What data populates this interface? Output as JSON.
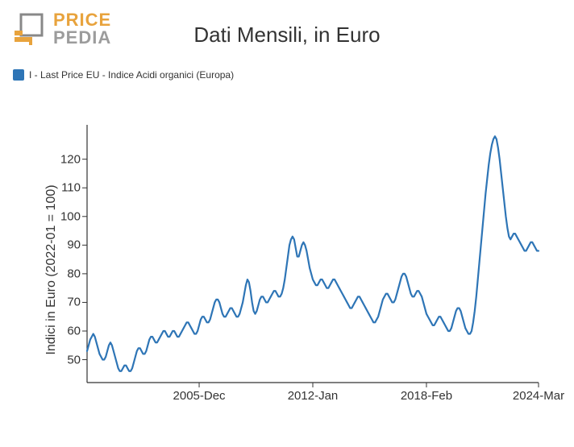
{
  "logo": {
    "line1": "PRICE",
    "line2": "PEDIA",
    "color1": "#e8a33d",
    "color2": "#9c9c9c",
    "icon_fill": "#e8a33d",
    "icon_stroke": "#888888"
  },
  "title": "Dati Mensili, in Euro",
  "legend": {
    "label": "I - Last Price EU - Indice Acidi organici (Europa)",
    "swatch_color": "#2e75b6"
  },
  "chart": {
    "type": "line",
    "ylabel": "Indici in Euro (2022-01 = 100)",
    "ylim": [
      42,
      132
    ],
    "yticks": [
      50,
      60,
      70,
      80,
      90,
      100,
      110,
      120
    ],
    "xlim": [
      0,
      290
    ],
    "xticks": [
      {
        "pos": 72,
        "label": "2005-Dec"
      },
      {
        "pos": 145,
        "label": "2012-Jan"
      },
      {
        "pos": 218,
        "label": "2018-Feb"
      },
      {
        "pos": 290,
        "label": "2024-Mar"
      }
    ],
    "axis_color": "#333333",
    "tick_font_size": 15,
    "line_color": "#2e75b6",
    "line_width": 2.2,
    "series": [
      53,
      55,
      57,
      58,
      59,
      58,
      56,
      54,
      52,
      51,
      50,
      50,
      51,
      53,
      55,
      56,
      55,
      53,
      51,
      49,
      47,
      46,
      46,
      47,
      48,
      48,
      47,
      46,
      46,
      47,
      49,
      51,
      53,
      54,
      54,
      53,
      52,
      52,
      53,
      55,
      57,
      58,
      58,
      57,
      56,
      56,
      57,
      58,
      59,
      60,
      60,
      59,
      58,
      58,
      59,
      60,
      60,
      59,
      58,
      58,
      59,
      60,
      61,
      62,
      63,
      63,
      62,
      61,
      60,
      59,
      59,
      60,
      62,
      64,
      65,
      65,
      64,
      63,
      63,
      64,
      66,
      68,
      70,
      71,
      71,
      70,
      68,
      66,
      65,
      65,
      66,
      67,
      68,
      68,
      67,
      66,
      65,
      65,
      66,
      68,
      70,
      73,
      76,
      78,
      77,
      74,
      70,
      67,
      66,
      67,
      69,
      71,
      72,
      72,
      71,
      70,
      70,
      71,
      72,
      73,
      74,
      74,
      73,
      72,
      72,
      73,
      75,
      78,
      82,
      86,
      90,
      92,
      93,
      92,
      89,
      86,
      86,
      88,
      90,
      91,
      90,
      88,
      85,
      82,
      80,
      78,
      77,
      76,
      76,
      77,
      78,
      78,
      77,
      76,
      75,
      75,
      76,
      77,
      78,
      78,
      77,
      76,
      75,
      74,
      73,
      72,
      71,
      70,
      69,
      68,
      68,
      69,
      70,
      71,
      72,
      72,
      71,
      70,
      69,
      68,
      67,
      66,
      65,
      64,
      63,
      63,
      64,
      65,
      67,
      69,
      71,
      72,
      73,
      73,
      72,
      71,
      70,
      70,
      71,
      73,
      75,
      77,
      79,
      80,
      80,
      79,
      77,
      75,
      73,
      72,
      72,
      73,
      74,
      74,
      73,
      72,
      70,
      68,
      66,
      65,
      64,
      63,
      62,
      62,
      63,
      64,
      65,
      65,
      64,
      63,
      62,
      61,
      60,
      60,
      61,
      63,
      65,
      67,
      68,
      68,
      67,
      65,
      63,
      61,
      60,
      59,
      59,
      60,
      63,
      67,
      72,
      78,
      84,
      90,
      96,
      102,
      108,
      113,
      118,
      122,
      125,
      127,
      128,
      127,
      124,
      120,
      115,
      110,
      105,
      100,
      96,
      93,
      92,
      93,
      94,
      94,
      93,
      92,
      91,
      90,
      89,
      88,
      88,
      89,
      90,
      91,
      91,
      90,
      89,
      88,
      88
    ]
  }
}
